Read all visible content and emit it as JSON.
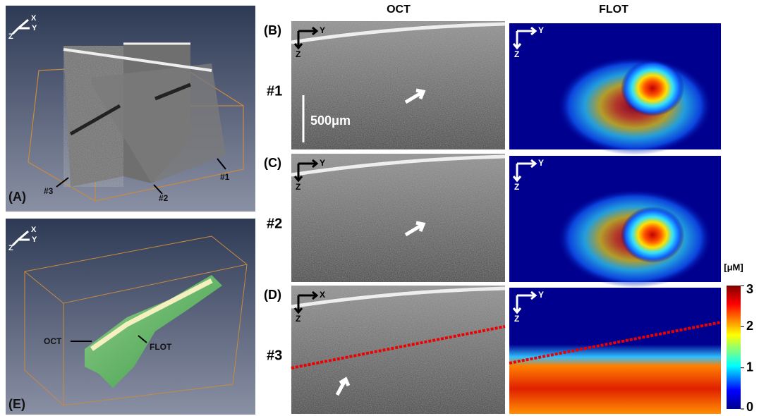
{
  "column_headers": [
    "OCT",
    "FLOT"
  ],
  "panel_a": {
    "label": "(A)",
    "axes": [
      "X",
      "Y",
      "Z"
    ],
    "slices": [
      "#1",
      "#2",
      "#3"
    ]
  },
  "panel_e": {
    "label": "(E)",
    "axes": [
      "X",
      "Y",
      "Z"
    ],
    "callouts": [
      "OCT",
      "FLOT"
    ]
  },
  "rows": [
    {
      "label": "(B)",
      "slice": "#1",
      "oct_axes": [
        "Y",
        "Z"
      ],
      "flot_axes": [
        "Y",
        "Z"
      ],
      "scale_bar": "500μm"
    },
    {
      "label": "(C)",
      "slice": "#2",
      "oct_axes": [
        "Y",
        "Z"
      ],
      "flot_axes": [
        "Y",
        "Z"
      ]
    },
    {
      "label": "(D)",
      "slice": "#3",
      "oct_axes": [
        "X",
        "Z"
      ],
      "flot_axes": [
        "Y",
        "Z"
      ]
    }
  ],
  "colorbar": {
    "unit": "[μM]",
    "range": [
      0,
      3
    ],
    "ticks": [
      0,
      1,
      2,
      3
    ]
  }
}
